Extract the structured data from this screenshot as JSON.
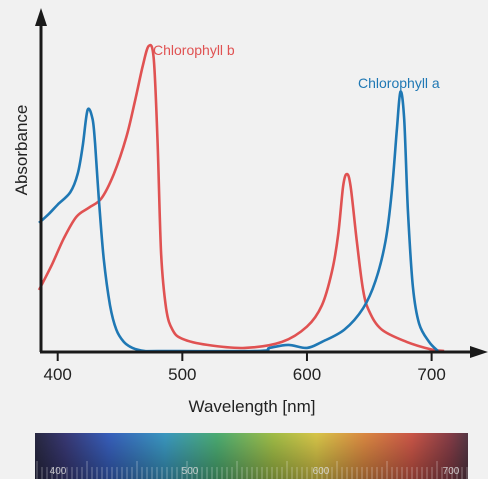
{
  "chart_data": {
    "type": "line",
    "title": "",
    "xlabel": "Wavelength [nm]",
    "ylabel": "Absorbance",
    "xlim": [
      385,
      730
    ],
    "ylim": [
      0,
      1.0
    ],
    "x_ticks": [
      400,
      500,
      600,
      700
    ],
    "x_tick_labels": [
      "400",
      "500",
      "600",
      "700"
    ],
    "y_ticks_shown": false,
    "grid": false,
    "series": [
      {
        "name": "Chlorophyll b",
        "color": "#e05252",
        "points": [
          [
            385,
            0.2
          ],
          [
            395,
            0.28
          ],
          [
            405,
            0.37
          ],
          [
            415,
            0.44
          ],
          [
            425,
            0.47
          ],
          [
            435,
            0.5
          ],
          [
            445,
            0.58
          ],
          [
            455,
            0.7
          ],
          [
            462,
            0.82
          ],
          [
            468,
            0.93
          ],
          [
            473,
            1.0
          ],
          [
            477,
            0.96
          ],
          [
            480,
            0.7
          ],
          [
            483,
            0.32
          ],
          [
            487,
            0.14
          ],
          [
            492,
            0.07
          ],
          [
            500,
            0.04
          ],
          [
            520,
            0.02
          ],
          [
            550,
            0.01
          ],
          [
            580,
            0.03
          ],
          [
            600,
            0.08
          ],
          [
            612,
            0.15
          ],
          [
            620,
            0.26
          ],
          [
            625,
            0.38
          ],
          [
            629,
            0.54
          ],
          [
            632,
            0.58
          ],
          [
            635,
            0.54
          ],
          [
            640,
            0.36
          ],
          [
            645,
            0.2
          ],
          [
            650,
            0.13
          ],
          [
            660,
            0.07
          ],
          [
            680,
            0.03
          ],
          [
            700,
            0.005
          ],
          [
            710,
            0.0
          ]
        ]
      },
      {
        "name": "Chlorophyll a",
        "color": "#1f78b4",
        "points": [
          [
            385,
            0.42
          ],
          [
            393,
            0.45
          ],
          [
            400,
            0.48
          ],
          [
            410,
            0.52
          ],
          [
            416,
            0.58
          ],
          [
            420,
            0.67
          ],
          [
            424,
            0.79
          ],
          [
            428,
            0.76
          ],
          [
            430,
            0.68
          ],
          [
            433,
            0.5
          ],
          [
            437,
            0.3
          ],
          [
            442,
            0.15
          ],
          [
            447,
            0.07
          ],
          [
            453,
            0.03
          ],
          [
            460,
            0.01
          ],
          [
            470,
            0.0
          ],
          [
            480,
            0.0
          ],
          [
            560,
            0.0
          ],
          [
            570,
            0.01
          ],
          [
            585,
            0.02
          ],
          [
            600,
            0.01
          ],
          [
            612,
            0.03
          ],
          [
            630,
            0.07
          ],
          [
            645,
            0.14
          ],
          [
            655,
            0.23
          ],
          [
            663,
            0.36
          ],
          [
            668,
            0.52
          ],
          [
            672,
            0.72
          ],
          [
            675,
            0.85
          ],
          [
            678,
            0.76
          ],
          [
            681,
            0.46
          ],
          [
            685,
            0.21
          ],
          [
            690,
            0.09
          ],
          [
            698,
            0.03
          ],
          [
            705,
            0.0
          ]
        ]
      }
    ],
    "spectrum_bar": {
      "tick_labels": [
        "400",
        "500",
        "600",
        "700"
      ]
    }
  }
}
